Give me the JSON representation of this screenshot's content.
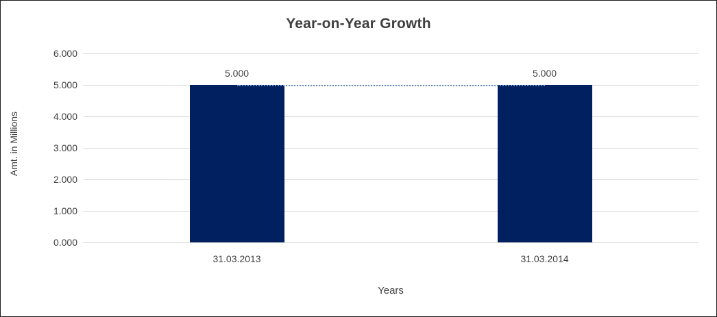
{
  "chart_data": {
    "type": "bar",
    "title": "Year-on-Year Growth",
    "xlabel": "Years",
    "ylabel": "Amt. in Millions",
    "categories": [
      "31.03.2013",
      "31.03.2014"
    ],
    "values": [
      5.0,
      5.0
    ],
    "data_labels": [
      "5.000",
      "5.000"
    ],
    "ylim": [
      0,
      6
    ],
    "yticks": [
      "6.000",
      "5.000",
      "4.000",
      "3.000",
      "2.000",
      "1.000",
      "0.000"
    ],
    "grid": "horizontal",
    "legend": "none",
    "bar_color": "#002060",
    "gridline_color": "#d9d9d9",
    "text_color": "#3f3f3f",
    "trendline": {
      "style": "dotted",
      "color": "#6b8cba",
      "value": 5.0
    }
  }
}
